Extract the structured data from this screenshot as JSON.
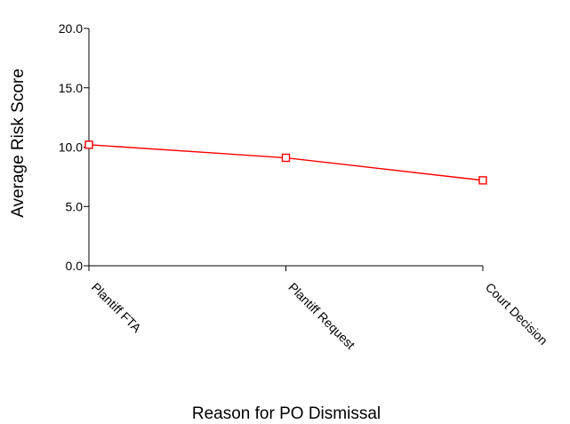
{
  "chart_data": {
    "type": "line",
    "title": "",
    "xlabel": "Reason for PO Dismissal",
    "ylabel": "Average Risk Score",
    "categories": [
      "Plantiff FTA",
      "Plantiff Request",
      "Court Decision"
    ],
    "series": [
      {
        "values": [
          10.2,
          9.1,
          7.2
        ],
        "color": "#ff0000",
        "marker": "square-open"
      }
    ],
    "ylim": [
      0,
      20
    ],
    "yticks": [
      "0.0",
      "5.0",
      "10.0",
      "15.0",
      "20.0"
    ],
    "grid": false,
    "legend": "none"
  }
}
